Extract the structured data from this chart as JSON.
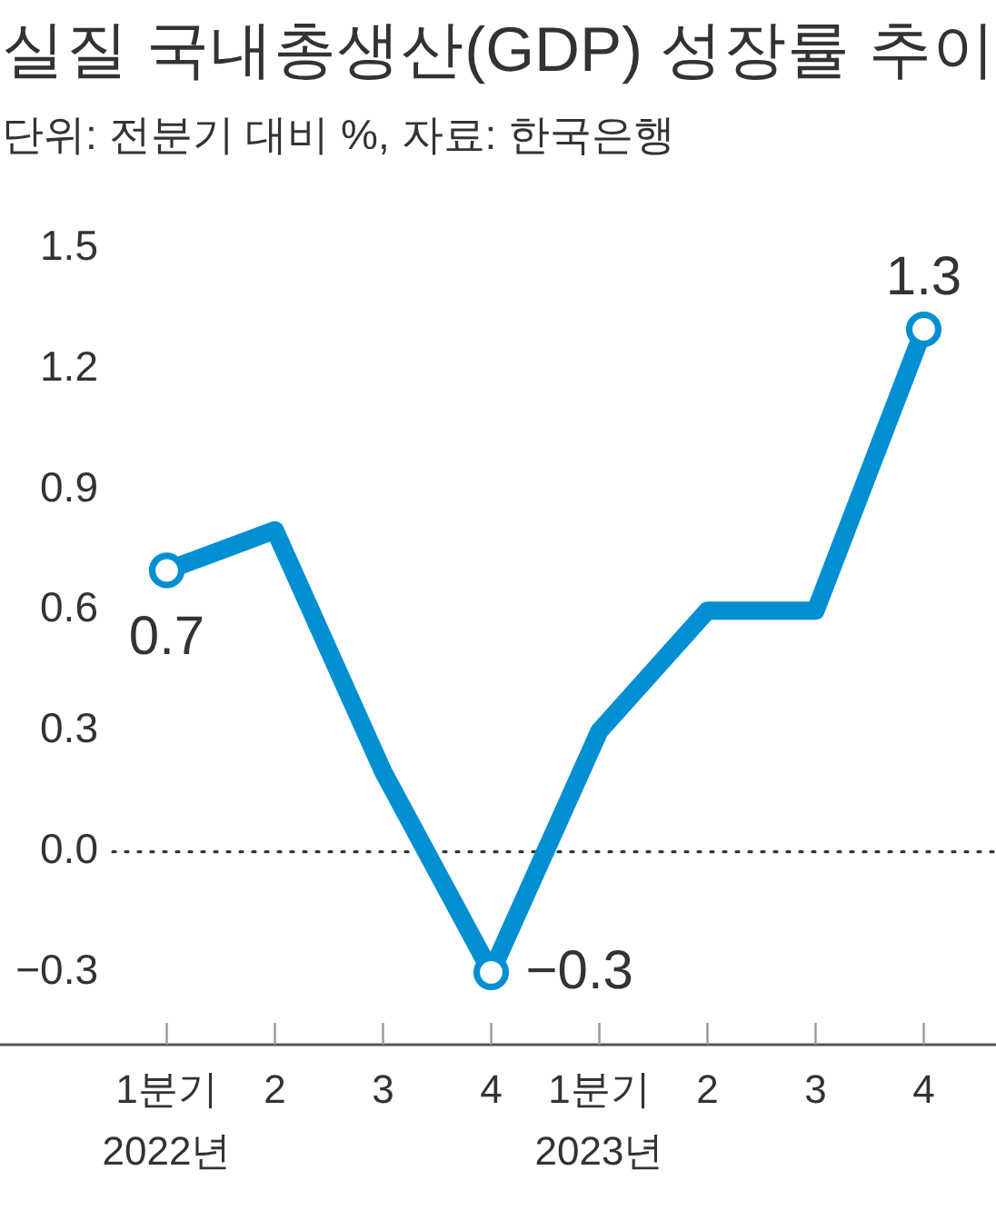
{
  "chart_data": {
    "type": "line",
    "title": "실질 국내총생산(GDP) 성장률 추이",
    "subtitle": "단위: 전분기 대비 %, 자료: 한국은행",
    "categories": [
      "1분기\n2022년",
      "2",
      "3",
      "4",
      "1분기\n2023년",
      "2",
      "3",
      "4"
    ],
    "series": [
      {
        "color": "#008fd3",
        "values": [
          0.7,
          0.8,
          0.2,
          -0.3,
          0.3,
          0.6,
          0.6,
          1.3
        ]
      },
      {
        "type": "scatter",
        "marker": "circle",
        "color": "#008fd3",
        "values": [
          0.7,
          null,
          null,
          -0.3,
          null,
          null,
          null,
          1.3
        ],
        "value_labels": [
          "0.7",
          null,
          null,
          "−0.3",
          null,
          null,
          null,
          "1.3"
        ]
      }
    ],
    "ylim": [
      -0.48,
      1.5
    ],
    "yticks": [
      1.5,
      1.2,
      0.9,
      0.6,
      0.3,
      {
        "value": 0,
        "label": "0.0"
      },
      {
        "value": -0.3,
        "label": "−0.3"
      }
    ],
    "ref_lines": [
      {
        "axis": "y",
        "value": 0,
        "line_style": "dotted",
        "color": "#333333"
      }
    ],
    "line_style": "solid"
  }
}
